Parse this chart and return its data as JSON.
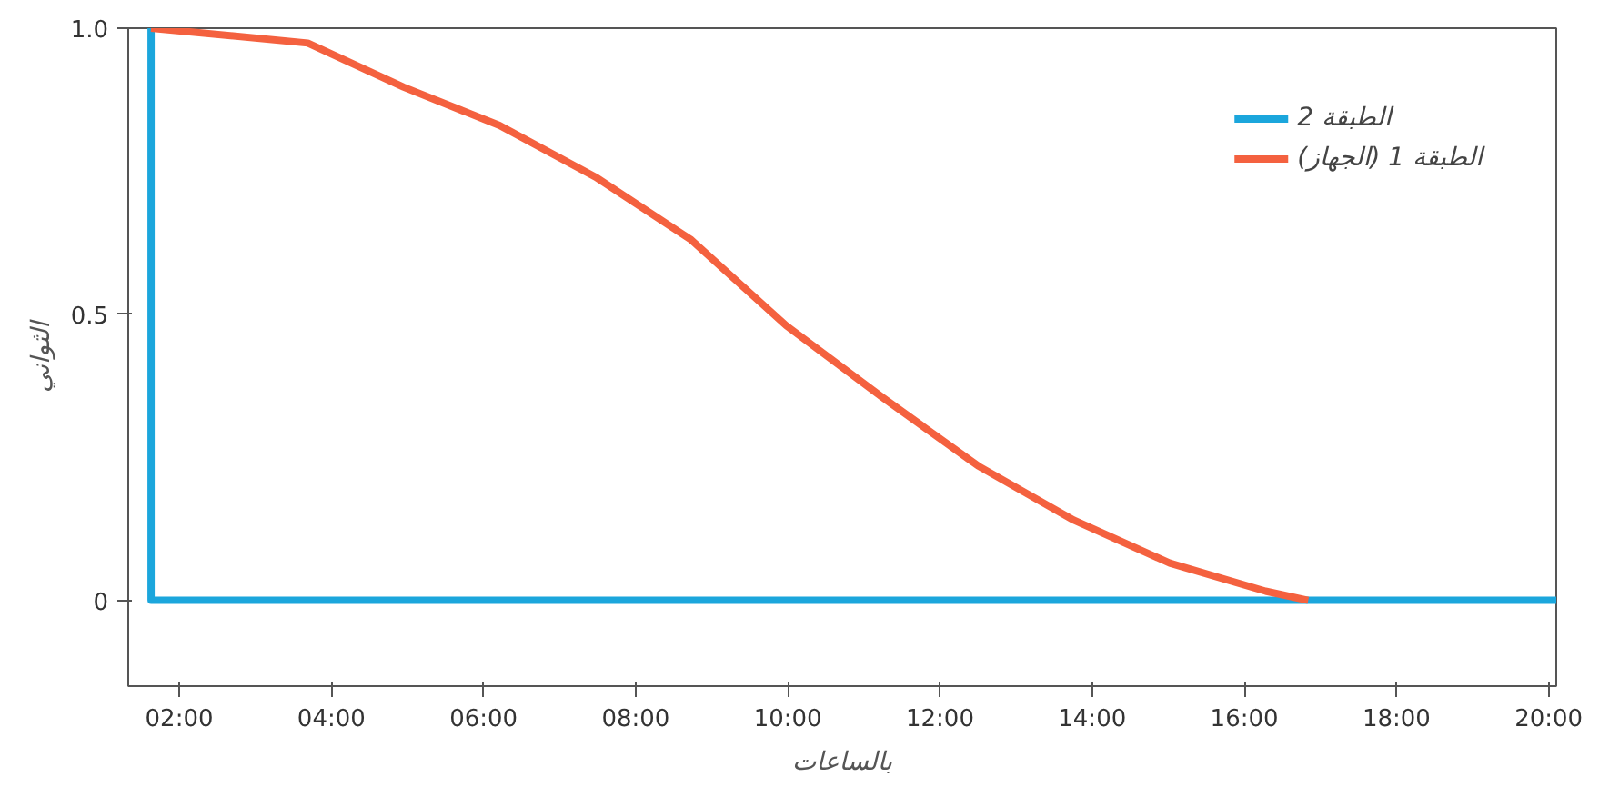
{
  "chart_data": {
    "type": "line",
    "xlabel": "بالساعات",
    "ylabel": "الثواني",
    "xlim": [
      1.33,
      20.1
    ],
    "ylim": [
      -0.15,
      1.0
    ],
    "xticks": [
      {
        "value": 2,
        "label": "02:00"
      },
      {
        "value": 4,
        "label": "04:00"
      },
      {
        "value": 6,
        "label": "06:00"
      },
      {
        "value": 8,
        "label": "08:00"
      },
      {
        "value": 10,
        "label": "10:00"
      },
      {
        "value": 12,
        "label": "12:00"
      },
      {
        "value": 14,
        "label": "14:00"
      },
      {
        "value": 16,
        "label": "16:00"
      },
      {
        "value": 18,
        "label": "18:00"
      },
      {
        "value": 20,
        "label": "20:00"
      }
    ],
    "yticks": [
      0,
      0.5,
      {
        "value": 1.0,
        "label": "1.0"
      }
    ],
    "grid": false,
    "legend": "top right",
    "line_style": "solid",
    "marker": "none",
    "series": [
      {
        "name": "الطبقة 2",
        "color": "#1ba6dc",
        "x": [
          1.63,
          1.63,
          20.1
        ],
        "values": [
          1.0,
          0,
          0
        ]
      },
      {
        "name": "الطبقة 1 (الجهاز)",
        "color": "#f4613f",
        "x": [
          1.63,
          3.69,
          4.95,
          6.21,
          7.47,
          8.73,
          9.98,
          11.24,
          12.5,
          13.76,
          15.02,
          16.28,
          16.84
        ],
        "values": [
          1.0,
          0.974,
          0.897,
          0.83,
          0.74,
          0.63,
          0.48,
          0.355,
          0.235,
          0.14,
          0.065,
          0.016,
          0
        ]
      }
    ]
  }
}
